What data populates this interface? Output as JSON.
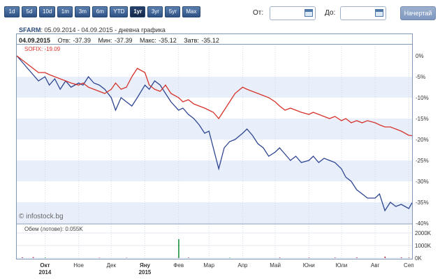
{
  "toolbar": {
    "periods": [
      "1d",
      "5d",
      "10d",
      "1m",
      "3m",
      "6m",
      "YTD",
      "1yr",
      "3yr",
      "5yr",
      "Max"
    ],
    "active": "1yr",
    "from_label": "От:",
    "to_label": "До:",
    "draw_label": "Начертай"
  },
  "header": {
    "ticker": "SFARM",
    "range_text": ": 05.09.2014 - 04.09.2015 - дневна графика",
    "date": "04.09.2015",
    "open_text": "Отв: -37.39",
    "min_text": "Мин: -37.39",
    "max_text": "Макс: -35.12",
    "close_text": "Затв: -35.12"
  },
  "sofix_label": "SOFIX: -19.09",
  "volume_label": "Обем (лотове): 0.055K",
  "copyright": "© infostock.bg",
  "colors": {
    "sfarm": "#2e4591",
    "sofix": "#d6332c",
    "band": "#e8effa",
    "volume": "#0f8a2e",
    "volume_down": "#b0213a"
  },
  "chart_data": {
    "type": "line",
    "yunit": "%",
    "ylim": [
      -40,
      0
    ],
    "yticks": [
      "0%",
      "-5%",
      "-10%",
      "-15%",
      "-20%",
      "-25%",
      "-30%",
      "-35%",
      "-40%"
    ],
    "x_month_labels": [
      {
        "label": "Окт",
        "year": "2014",
        "date": "2014-10-01"
      },
      {
        "label": "Ное",
        "year": "",
        "date": "2014-11-01"
      },
      {
        "label": "Дек",
        "year": "",
        "date": "2014-12-01"
      },
      {
        "label": "Яну",
        "year": "2015",
        "date": "2015-01-01"
      },
      {
        "label": "Фев",
        "year": "",
        "date": "2015-02-01"
      },
      {
        "label": "Мар",
        "year": "",
        "date": "2015-03-01"
      },
      {
        "label": "Апр",
        "year": "",
        "date": "2015-04-01"
      },
      {
        "label": "Май",
        "year": "",
        "date": "2015-05-01"
      },
      {
        "label": "Юни",
        "year": "",
        "date": "2015-06-01"
      },
      {
        "label": "Юли",
        "year": "",
        "date": "2015-07-01"
      },
      {
        "label": "Авг",
        "year": "",
        "date": "2015-08-01"
      },
      {
        "label": "Сеп",
        "year": "",
        "date": "2015-09-01"
      }
    ],
    "series": [
      {
        "name": "SFARM",
        "points": [
          [
            "2014-09-05",
            0
          ],
          [
            "2014-09-10",
            -1.5
          ],
          [
            "2014-09-15",
            -3
          ],
          [
            "2014-09-20",
            -4.5
          ],
          [
            "2014-09-25",
            -6
          ],
          [
            "2014-10-01",
            -5
          ],
          [
            "2014-10-05",
            -7
          ],
          [
            "2014-10-10",
            -5.5
          ],
          [
            "2014-10-15",
            -8
          ],
          [
            "2014-10-20",
            -6
          ],
          [
            "2014-10-25",
            -7.5
          ],
          [
            "2014-11-01",
            -6.5
          ],
          [
            "2014-11-05",
            -7
          ],
          [
            "2014-11-10",
            -5
          ],
          [
            "2014-11-15",
            -6.5
          ],
          [
            "2014-11-20",
            -7
          ],
          [
            "2014-11-25",
            -8
          ],
          [
            "2014-12-01",
            -10
          ],
          [
            "2014-12-05",
            -13
          ],
          [
            "2014-12-10",
            -10
          ],
          [
            "2014-12-15",
            -11
          ],
          [
            "2014-12-20",
            -12
          ],
          [
            "2014-12-25",
            -10
          ],
          [
            "2015-01-01",
            -7
          ],
          [
            "2015-01-05",
            -8
          ],
          [
            "2015-01-10",
            -6
          ],
          [
            "2015-01-15",
            -7
          ],
          [
            "2015-01-20",
            -9
          ],
          [
            "2015-01-25",
            -11
          ],
          [
            "2015-02-01",
            -13
          ],
          [
            "2015-02-05",
            -12.5
          ],
          [
            "2015-02-10",
            -14
          ],
          [
            "2015-02-15",
            -15
          ],
          [
            "2015-02-20",
            -16.5
          ],
          [
            "2015-02-25",
            -18.5
          ],
          [
            "2015-03-01",
            -18
          ],
          [
            "2015-03-05",
            -22
          ],
          [
            "2015-03-10",
            -27
          ],
          [
            "2015-03-15",
            -22
          ],
          [
            "2015-03-20",
            -20.5
          ],
          [
            "2015-03-25",
            -20
          ],
          [
            "2015-04-01",
            -18.5
          ],
          [
            "2015-04-05",
            -17.5
          ],
          [
            "2015-04-10",
            -19
          ],
          [
            "2015-04-15",
            -21
          ],
          [
            "2015-04-20",
            -22
          ],
          [
            "2015-04-25",
            -24
          ],
          [
            "2015-05-01",
            -23
          ],
          [
            "2015-05-05",
            -22
          ],
          [
            "2015-05-10",
            -23.5
          ],
          [
            "2015-05-15",
            -25
          ],
          [
            "2015-05-20",
            -24
          ],
          [
            "2015-05-25",
            -25.5
          ],
          [
            "2015-06-01",
            -25
          ],
          [
            "2015-06-05",
            -24
          ],
          [
            "2015-06-10",
            -25.5
          ],
          [
            "2015-06-15",
            -24.5
          ],
          [
            "2015-06-20",
            -25
          ],
          [
            "2015-06-25",
            -25.5
          ],
          [
            "2015-07-01",
            -27
          ],
          [
            "2015-07-05",
            -29
          ],
          [
            "2015-07-10",
            -30
          ],
          [
            "2015-07-15",
            -32
          ],
          [
            "2015-07-20",
            -33
          ],
          [
            "2015-07-25",
            -34
          ],
          [
            "2015-08-01",
            -34
          ],
          [
            "2015-08-05",
            -33
          ],
          [
            "2015-08-10",
            -37
          ],
          [
            "2015-08-15",
            -35
          ],
          [
            "2015-08-20",
            -36
          ],
          [
            "2015-08-25",
            -35.5
          ],
          [
            "2015-09-01",
            -36.5
          ],
          [
            "2015-09-04",
            -35.12
          ]
        ]
      },
      {
        "name": "SOFIX",
        "points": [
          [
            "2014-09-05",
            0
          ],
          [
            "2014-09-10",
            -1
          ],
          [
            "2014-09-15",
            -2
          ],
          [
            "2014-09-20",
            -3
          ],
          [
            "2014-09-25",
            -4
          ],
          [
            "2014-10-01",
            -4
          ],
          [
            "2014-10-05",
            -4.5
          ],
          [
            "2014-10-10",
            -5
          ],
          [
            "2014-10-15",
            -5.5
          ],
          [
            "2014-10-20",
            -6
          ],
          [
            "2014-10-25",
            -6.5
          ],
          [
            "2014-11-01",
            -7
          ],
          [
            "2014-11-05",
            -6.5
          ],
          [
            "2014-11-10",
            -7.5
          ],
          [
            "2014-11-15",
            -8
          ],
          [
            "2014-11-20",
            -8.5
          ],
          [
            "2014-11-25",
            -9
          ],
          [
            "2014-12-01",
            -8
          ],
          [
            "2014-12-05",
            -6.5
          ],
          [
            "2014-12-10",
            -8
          ],
          [
            "2014-12-15",
            -7.5
          ],
          [
            "2014-12-20",
            -5
          ],
          [
            "2014-12-25",
            -3
          ],
          [
            "2015-01-01",
            -4
          ],
          [
            "2015-01-05",
            -7
          ],
          [
            "2015-01-10",
            -8
          ],
          [
            "2015-01-15",
            -8.5
          ],
          [
            "2015-01-20",
            -7
          ],
          [
            "2015-01-25",
            -9
          ],
          [
            "2015-02-01",
            -10
          ],
          [
            "2015-02-05",
            -11
          ],
          [
            "2015-02-10",
            -10.5
          ],
          [
            "2015-02-15",
            -11.5
          ],
          [
            "2015-02-20",
            -12
          ],
          [
            "2015-02-25",
            -12.5
          ],
          [
            "2015-03-01",
            -13
          ],
          [
            "2015-03-05",
            -13.5
          ],
          [
            "2015-03-10",
            -15
          ],
          [
            "2015-03-15",
            -13
          ],
          [
            "2015-03-20",
            -11
          ],
          [
            "2015-03-25",
            -9
          ],
          [
            "2015-04-01",
            -7.5
          ],
          [
            "2015-04-05",
            -8
          ],
          [
            "2015-04-10",
            -8.5
          ],
          [
            "2015-04-15",
            -9
          ],
          [
            "2015-04-20",
            -9.5
          ],
          [
            "2015-04-25",
            -10
          ],
          [
            "2015-05-01",
            -11
          ],
          [
            "2015-05-05",
            -12
          ],
          [
            "2015-05-10",
            -13
          ],
          [
            "2015-05-15",
            -12.5
          ],
          [
            "2015-05-20",
            -13
          ],
          [
            "2015-05-25",
            -13.5
          ],
          [
            "2015-06-01",
            -14
          ],
          [
            "2015-06-05",
            -13.5
          ],
          [
            "2015-06-10",
            -14
          ],
          [
            "2015-06-15",
            -14.5
          ],
          [
            "2015-06-20",
            -15
          ],
          [
            "2015-06-25",
            -14.5
          ],
          [
            "2015-07-01",
            -15.5
          ],
          [
            "2015-07-05",
            -15
          ],
          [
            "2015-07-10",
            -16
          ],
          [
            "2015-07-15",
            -15.5
          ],
          [
            "2015-07-20",
            -16
          ],
          [
            "2015-07-25",
            -15.5
          ],
          [
            "2015-08-01",
            -16
          ],
          [
            "2015-08-05",
            -16.5
          ],
          [
            "2015-08-10",
            -17
          ],
          [
            "2015-08-15",
            -17
          ],
          [
            "2015-08-20",
            -17.5
          ],
          [
            "2015-08-25",
            -18
          ],
          [
            "2015-09-01",
            -19
          ],
          [
            "2015-09-04",
            -19.09
          ]
        ]
      }
    ],
    "volume": {
      "yticks": [
        "2000K",
        "1000K",
        "0K"
      ],
      "ylim": [
        0,
        2000
      ],
      "bars": [
        {
          "date": "2014-09-10",
          "value": 60,
          "dir": "down"
        },
        {
          "date": "2014-09-20",
          "value": 80,
          "dir": "down"
        },
        {
          "date": "2014-10-01",
          "value": 40,
          "dir": "up"
        },
        {
          "date": "2014-11-20",
          "value": 30,
          "dir": "down"
        },
        {
          "date": "2014-12-15",
          "value": 25,
          "dir": "down"
        },
        {
          "date": "2015-02-01",
          "value": 1500,
          "dir": "up"
        },
        {
          "date": "2015-02-10",
          "value": 40,
          "dir": "down"
        },
        {
          "date": "2015-03-20",
          "value": 30,
          "dir": "up"
        },
        {
          "date": "2015-05-05",
          "value": 45,
          "dir": "down"
        },
        {
          "date": "2015-06-01",
          "value": 35,
          "dir": "down"
        },
        {
          "date": "2015-06-25",
          "value": 40,
          "dir": "down"
        },
        {
          "date": "2015-07-15",
          "value": 50,
          "dir": "down"
        },
        {
          "date": "2015-08-10",
          "value": 120,
          "dir": "down"
        },
        {
          "date": "2015-08-25",
          "value": 50,
          "dir": "down"
        },
        {
          "date": "2015-09-01",
          "value": 35,
          "dir": "down"
        }
      ]
    }
  }
}
